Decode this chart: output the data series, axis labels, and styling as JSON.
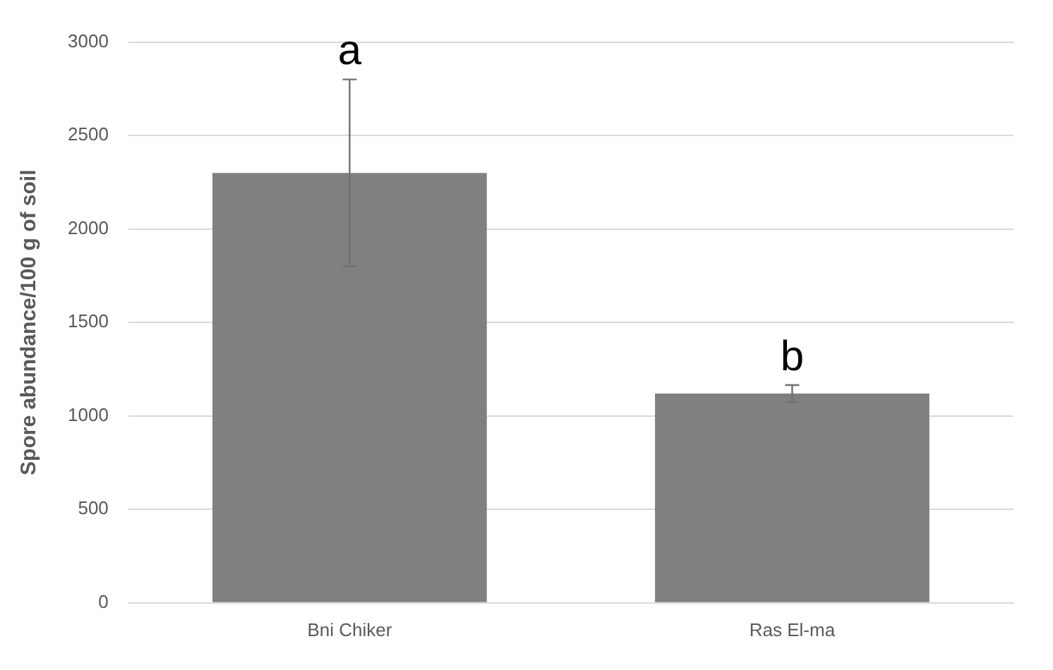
{
  "chart_data": {
    "type": "bar",
    "ylabel": "Spore abundance/100 g of soil",
    "categories": [
      "Bni Chiker",
      "Ras El-ma"
    ],
    "values": [
      2300,
      1120
    ],
    "errors": [
      500,
      45
    ],
    "color": "#808080",
    "ylim": [
      0,
      3000
    ],
    "yticks": [
      0,
      500,
      1000,
      1500,
      2000,
      2500,
      3000
    ],
    "grid": "y",
    "annotations": [
      {
        "text": "a",
        "x": "Bni Chiker",
        "y": 2800
      },
      {
        "text": "b",
        "x": "Ras El-ma",
        "y": 1165
      }
    ]
  }
}
